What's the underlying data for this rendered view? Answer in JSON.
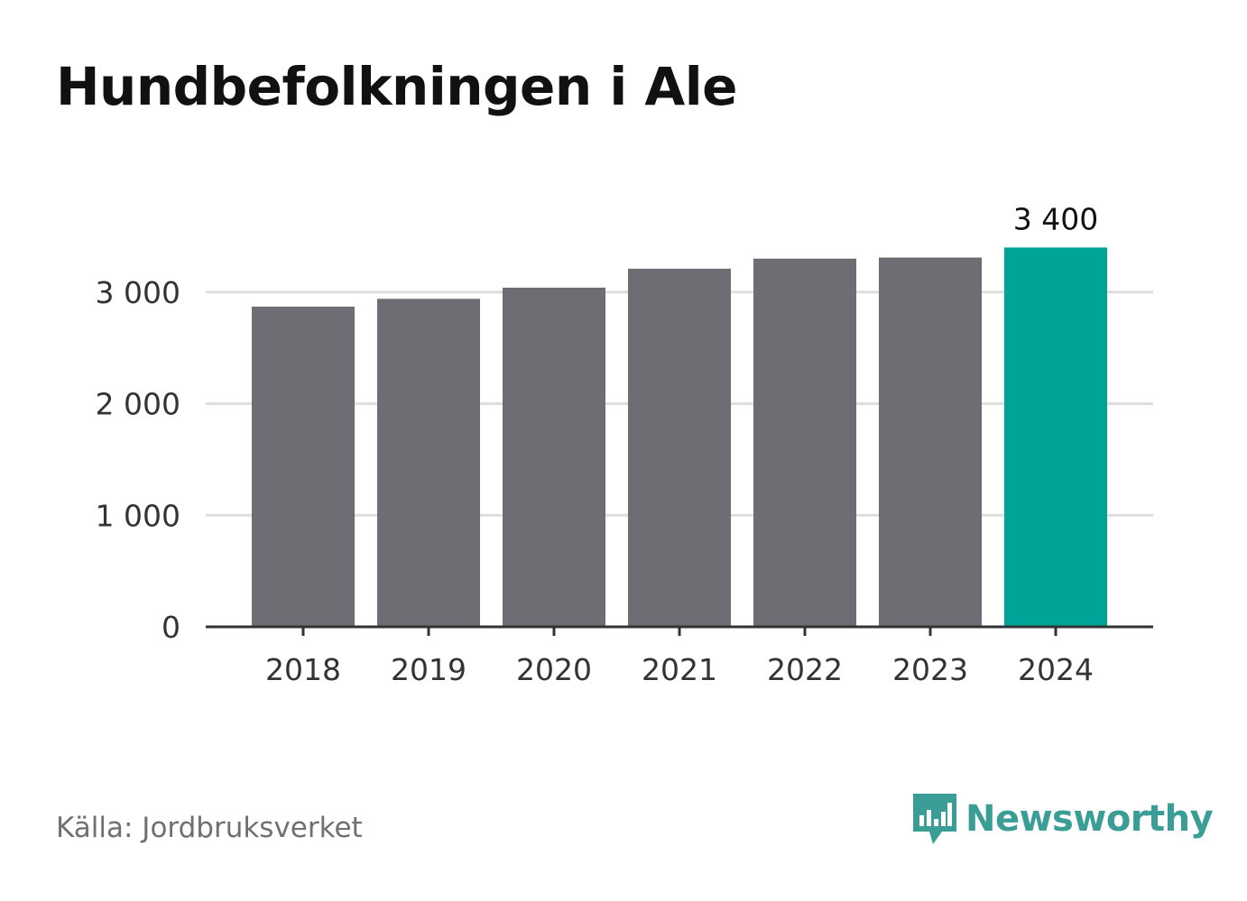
{
  "title": "Hundbefolkningen i Ale",
  "source": "Källa: Jordbruksverket",
  "brand": {
    "name": "Newsworthy",
    "icon": "newsworthy-logo-icon",
    "color": "#3a9e97"
  },
  "colors": {
    "bar": "#6e6d73",
    "highlight": "#00a398",
    "grid": "#dddddd",
    "axis": "#333333",
    "tick_text": "#333333"
  },
  "chart_data": {
    "type": "bar",
    "title": "Hundbefolkningen i Ale",
    "xlabel": "",
    "ylabel": "",
    "categories": [
      "2018",
      "2019",
      "2020",
      "2021",
      "2022",
      "2023",
      "2024"
    ],
    "values": [
      2870,
      2940,
      3040,
      3210,
      3300,
      3310,
      3400
    ],
    "ylim": [
      0,
      3400
    ],
    "yticks": [
      0,
      1000,
      2000,
      3000
    ],
    "ytick_labels": [
      "0",
      "1 000",
      "2 000",
      "3 000"
    ],
    "highlight_index": 6,
    "data_labels": [
      {
        "index": 6,
        "text": "3 400"
      }
    ],
    "grid": true,
    "legend": "none"
  }
}
